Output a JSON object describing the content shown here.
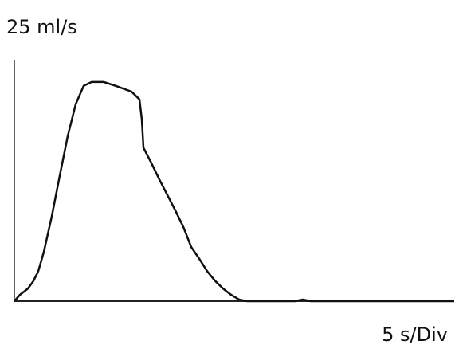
{
  "chart_data": {
    "type": "line",
    "y_label": "25 ml/s",
    "x_label": "5 s/Div",
    "x": [
      0,
      0.7,
      1.7,
      2.4,
      3,
      3.7,
      4.7,
      5.7,
      6.7,
      7.7,
      8.7,
      9.7,
      11.2,
      12.7,
      14.7,
      15.7,
      16,
      16.2,
      17.2,
      18.2,
      19.2,
      20.2,
      21.2,
      22.2,
      23.2,
      24.2,
      25.2,
      26.2,
      27.2,
      28.2,
      29.2,
      35.2,
      36.2,
      37.2,
      55.2
    ],
    "series": [
      {
        "color": "#111111",
        "values": [
          0,
          0.66,
          1.3,
          2.1,
          3.1,
          5.1,
          8.8,
          13,
          17.1,
          20.4,
          22.3,
          22.7,
          22.7,
          22.3,
          21.7,
          20.9,
          18.8,
          15.9,
          14.3,
          12.6,
          11,
          9.4,
          7.7,
          5.6,
          4.4,
          3.1,
          2.1,
          1.3,
          0.66,
          0.17,
          0,
          0,
          0.17,
          0,
          0
        ]
      }
    ],
    "xlim": [
      0,
      55.2
    ],
    "ylim": [
      0,
      25
    ]
  }
}
